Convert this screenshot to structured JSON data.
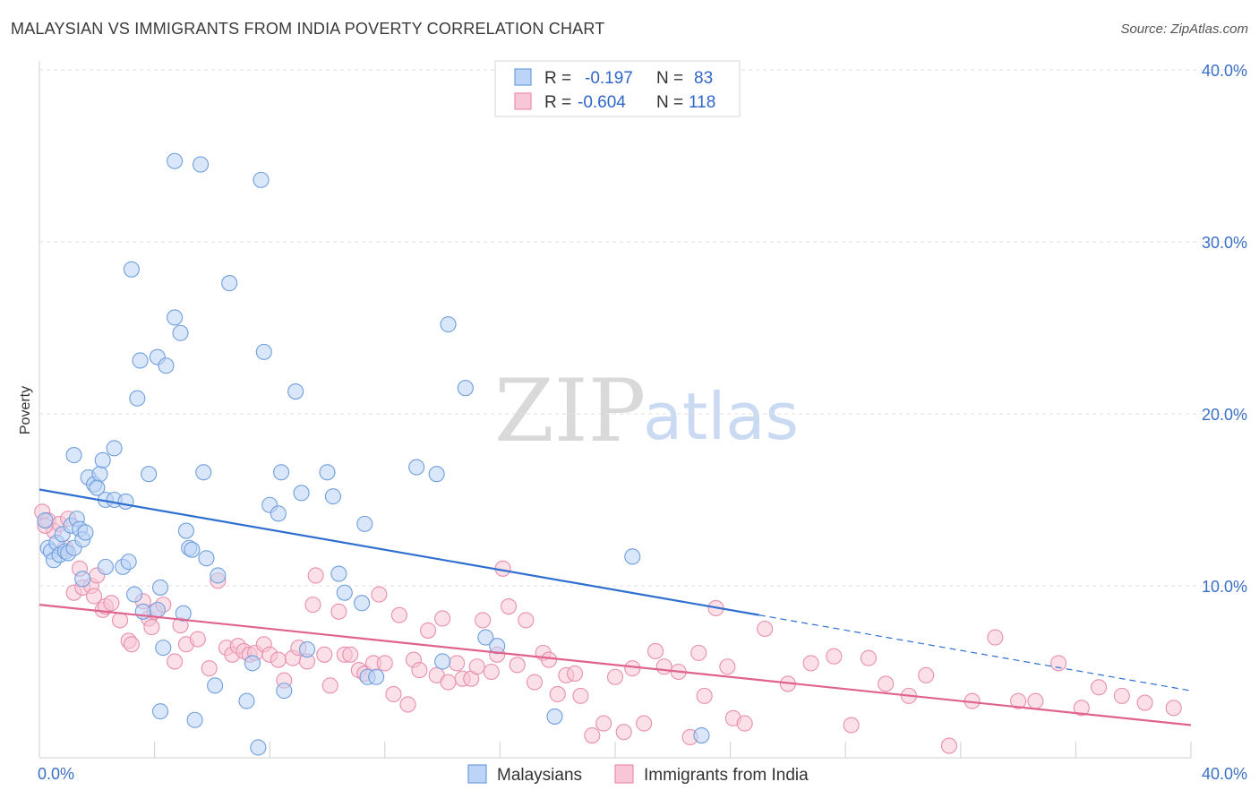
{
  "title": "MALAYSIAN VS IMMIGRANTS FROM INDIA POVERTY CORRELATION CHART",
  "source": "Source: ZipAtlas.com",
  "watermark": {
    "zip": "ZIP",
    "atlas": "atlas"
  },
  "colors": {
    "malaysian_fill": "#bcd4f5",
    "malaysian_stroke": "#6f9fdc",
    "malaysian_line": "#2f6fd0",
    "india_fill": "#f8c6d6",
    "india_stroke": "#e88fae",
    "india_line": "#e0628f"
  },
  "legend": {
    "malaysian": {
      "r_label": "R =",
      "r_value": "-0.197",
      "n_label": "N =",
      "n_value": "83"
    },
    "india": {
      "r_label": "R =",
      "r_value": "-0.604",
      "n_label": "N =",
      "n_value": "118"
    }
  },
  "chart_data": {
    "type": "scatter",
    "xlabel": "",
    "ylabel": "Poverty",
    "xlim": [
      0,
      40
    ],
    "ylim": [
      0,
      40
    ],
    "x_tick_labels": [
      "0.0%",
      "40.0%"
    ],
    "y_ticks": [
      10,
      20,
      30,
      40
    ],
    "y_tick_labels": [
      "10.0%",
      "20.0%",
      "30.0%",
      "40.0%"
    ],
    "grid": true,
    "legend_position": "top-center",
    "series": [
      {
        "name": "Malaysians",
        "r": -0.197,
        "n": 83,
        "trend": {
          "x": [
            0,
            25
          ],
          "y": [
            15.6,
            8.3
          ],
          "dashed_x": [
            25,
            40
          ],
          "dashed_y": [
            8.3,
            3.9
          ]
        },
        "points": [
          [
            0.2,
            13.8
          ],
          [
            0.3,
            12.2
          ],
          [
            0.4,
            12.0
          ],
          [
            0.5,
            11.5
          ],
          [
            0.6,
            12.5
          ],
          [
            0.7,
            11.8
          ],
          [
            0.8,
            13.0
          ],
          [
            0.9,
            12.0
          ],
          [
            1.0,
            11.9
          ],
          [
            1.1,
            13.5
          ],
          [
            1.2,
            12.2
          ],
          [
            1.3,
            13.9
          ],
          [
            1.4,
            13.3
          ],
          [
            1.5,
            10.4
          ],
          [
            1.5,
            12.7
          ],
          [
            1.6,
            13.1
          ],
          [
            1.2,
            17.6
          ],
          [
            1.7,
            16.3
          ],
          [
            1.9,
            15.9
          ],
          [
            2.1,
            16.5
          ],
          [
            2.0,
            15.7
          ],
          [
            2.2,
            17.3
          ],
          [
            2.3,
            15.0
          ],
          [
            2.6,
            15.0
          ],
          [
            3.0,
            14.9
          ],
          [
            2.6,
            18.0
          ],
          [
            2.3,
            11.1
          ],
          [
            2.9,
            11.1
          ],
          [
            3.1,
            11.4
          ],
          [
            3.2,
            28.4
          ],
          [
            3.3,
            9.5
          ],
          [
            3.5,
            23.1
          ],
          [
            3.4,
            20.9
          ],
          [
            3.8,
            16.5
          ],
          [
            4.1,
            23.3
          ],
          [
            3.6,
            8.5
          ],
          [
            4.1,
            8.6
          ],
          [
            4.2,
            9.9
          ],
          [
            4.4,
            22.8
          ],
          [
            4.7,
            25.6
          ],
          [
            4.7,
            34.7
          ],
          [
            4.9,
            24.7
          ],
          [
            5.0,
            8.4
          ],
          [
            5.1,
            13.2
          ],
          [
            5.2,
            12.2
          ],
          [
            5.3,
            12.1
          ],
          [
            5.6,
            34.5
          ],
          [
            5.7,
            16.6
          ],
          [
            5.8,
            11.6
          ],
          [
            6.2,
            10.6
          ],
          [
            6.6,
            27.6
          ],
          [
            4.3,
            6.4
          ],
          [
            4.2,
            2.7
          ],
          [
            5.4,
            2.2
          ],
          [
            6.1,
            4.2
          ],
          [
            7.2,
            3.3
          ],
          [
            7.4,
            5.5
          ],
          [
            7.6,
            0.6
          ],
          [
            7.7,
            33.6
          ],
          [
            7.8,
            23.6
          ],
          [
            8.0,
            14.7
          ],
          [
            8.3,
            14.2
          ],
          [
            8.4,
            16.6
          ],
          [
            8.5,
            3.9
          ],
          [
            8.9,
            21.3
          ],
          [
            9.1,
            15.4
          ],
          [
            9.3,
            6.3
          ],
          [
            10.0,
            16.6
          ],
          [
            10.2,
            15.2
          ],
          [
            10.4,
            10.7
          ],
          [
            10.6,
            9.6
          ],
          [
            11.2,
            9.0
          ],
          [
            11.3,
            13.6
          ],
          [
            11.4,
            4.7
          ],
          [
            11.7,
            4.7
          ],
          [
            13.1,
            16.9
          ],
          [
            13.8,
            16.5
          ],
          [
            14.2,
            25.2
          ],
          [
            14.0,
            5.6
          ],
          [
            14.8,
            21.5
          ],
          [
            15.5,
            7.0
          ],
          [
            15.9,
            6.5
          ],
          [
            17.9,
            2.4
          ],
          [
            20.6,
            11.7
          ],
          [
            23.0,
            1.3
          ]
        ]
      },
      {
        "name": "Immigrants from India",
        "r": -0.604,
        "n": 118,
        "trend": {
          "x": [
            0,
            40
          ],
          "y": [
            8.9,
            1.9
          ]
        },
        "points": [
          [
            0.1,
            14.3
          ],
          [
            0.3,
            13.8
          ],
          [
            0.5,
            13.2
          ],
          [
            0.7,
            13.6
          ],
          [
            0.9,
            12.2
          ],
          [
            1.0,
            13.9
          ],
          [
            1.2,
            9.6
          ],
          [
            1.4,
            11.0
          ],
          [
            1.5,
            9.9
          ],
          [
            1.8,
            10.0
          ],
          [
            1.9,
            9.4
          ],
          [
            2.0,
            10.6
          ],
          [
            2.2,
            8.6
          ],
          [
            2.3,
            8.8
          ],
          [
            2.5,
            9.0
          ],
          [
            2.8,
            8.0
          ],
          [
            3.1,
            6.8
          ],
          [
            3.2,
            6.6
          ],
          [
            3.6,
            9.1
          ],
          [
            3.8,
            8.1
          ],
          [
            3.9,
            7.6
          ],
          [
            4.0,
            8.5
          ],
          [
            4.3,
            8.9
          ],
          [
            4.7,
            5.6
          ],
          [
            4.9,
            7.7
          ],
          [
            5.1,
            6.6
          ],
          [
            5.5,
            6.9
          ],
          [
            5.9,
            5.2
          ],
          [
            6.2,
            10.3
          ],
          [
            6.5,
            6.4
          ],
          [
            6.7,
            6.0
          ],
          [
            6.9,
            6.5
          ],
          [
            7.1,
            6.2
          ],
          [
            7.3,
            6.0
          ],
          [
            7.5,
            6.1
          ],
          [
            7.8,
            6.6
          ],
          [
            8.0,
            6.0
          ],
          [
            8.3,
            5.7
          ],
          [
            8.5,
            4.5
          ],
          [
            8.8,
            5.8
          ],
          [
            9.0,
            6.4
          ],
          [
            9.3,
            5.6
          ],
          [
            9.5,
            8.9
          ],
          [
            9.6,
            10.6
          ],
          [
            9.9,
            6.0
          ],
          [
            10.1,
            4.2
          ],
          [
            10.4,
            8.5
          ],
          [
            10.6,
            6.0
          ],
          [
            10.8,
            6.0
          ],
          [
            11.1,
            5.1
          ],
          [
            11.3,
            4.9
          ],
          [
            11.6,
            5.5
          ],
          [
            11.8,
            9.5
          ],
          [
            12.0,
            5.5
          ],
          [
            12.3,
            3.7
          ],
          [
            12.5,
            8.3
          ],
          [
            12.8,
            3.1
          ],
          [
            13.0,
            5.7
          ],
          [
            13.2,
            5.1
          ],
          [
            13.5,
            7.4
          ],
          [
            13.8,
            4.8
          ],
          [
            14.0,
            8.1
          ],
          [
            14.2,
            4.4
          ],
          [
            14.5,
            5.5
          ],
          [
            14.7,
            4.6
          ],
          [
            15.0,
            4.6
          ],
          [
            15.2,
            5.3
          ],
          [
            15.4,
            8.0
          ],
          [
            15.7,
            5.0
          ],
          [
            15.9,
            6.0
          ],
          [
            16.1,
            11.0
          ],
          [
            16.3,
            8.8
          ],
          [
            16.6,
            5.4
          ],
          [
            16.9,
            8.0
          ],
          [
            17.2,
            4.4
          ],
          [
            17.5,
            6.1
          ],
          [
            17.7,
            5.7
          ],
          [
            18.0,
            3.7
          ],
          [
            18.3,
            4.8
          ],
          [
            18.6,
            4.9
          ],
          [
            18.8,
            3.6
          ],
          [
            19.2,
            1.3
          ],
          [
            19.6,
            2.0
          ],
          [
            20.0,
            4.7
          ],
          [
            20.3,
            1.5
          ],
          [
            20.6,
            5.2
          ],
          [
            21.0,
            2.0
          ],
          [
            21.4,
            6.2
          ],
          [
            21.7,
            5.3
          ],
          [
            22.2,
            5.0
          ],
          [
            22.6,
            1.2
          ],
          [
            22.9,
            6.1
          ],
          [
            23.1,
            3.6
          ],
          [
            23.5,
            8.7
          ],
          [
            23.9,
            5.3
          ],
          [
            24.1,
            2.3
          ],
          [
            24.5,
            2.0
          ],
          [
            25.2,
            7.5
          ],
          [
            26.0,
            4.3
          ],
          [
            26.8,
            5.5
          ],
          [
            27.6,
            5.9
          ],
          [
            28.2,
            1.9
          ],
          [
            28.8,
            5.8
          ],
          [
            29.4,
            4.3
          ],
          [
            30.2,
            3.6
          ],
          [
            30.8,
            4.8
          ],
          [
            31.6,
            0.7
          ],
          [
            32.4,
            3.3
          ],
          [
            33.2,
            7.0
          ],
          [
            34.0,
            3.3
          ],
          [
            34.6,
            3.3
          ],
          [
            35.4,
            5.5
          ],
          [
            36.2,
            2.9
          ],
          [
            36.8,
            4.1
          ],
          [
            37.6,
            3.6
          ],
          [
            38.4,
            3.2
          ],
          [
            39.4,
            2.9
          ],
          [
            0.2,
            13.5
          ]
        ]
      }
    ]
  },
  "bottom_legend": [
    "Malaysians",
    "Immigrants from India"
  ]
}
